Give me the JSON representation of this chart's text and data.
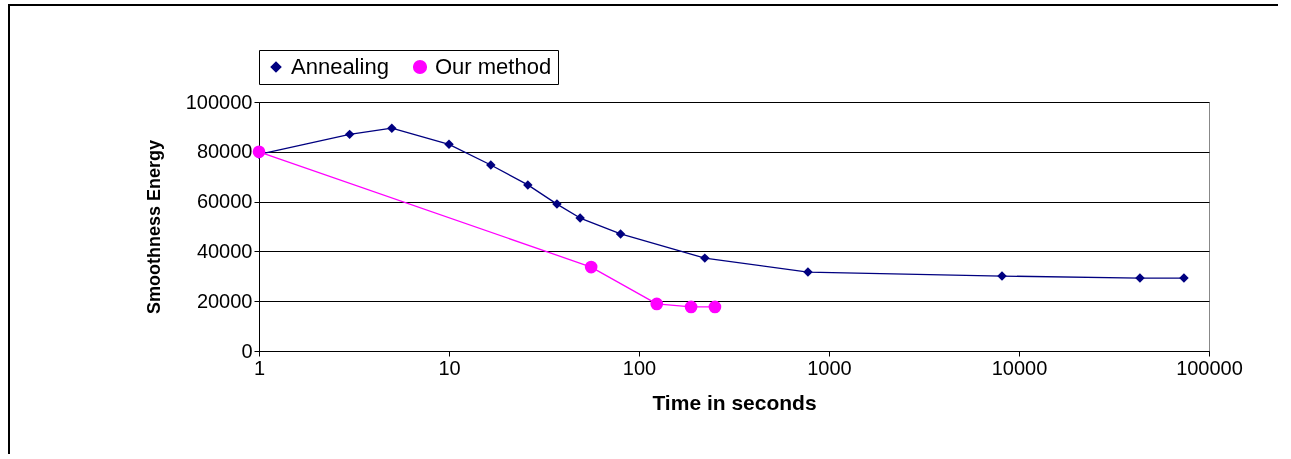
{
  "chart_data": {
    "type": "line",
    "xlabel": "Time in seconds",
    "ylabel": "Smoothness Energy",
    "log": "x",
    "xlim": [
      1,
      100000
    ],
    "xticks": [
      1,
      10,
      100,
      1000,
      10000,
      100000
    ],
    "ylim": [
      0,
      100000
    ],
    "yticks": [
      0,
      20000,
      40000,
      60000,
      80000,
      100000
    ],
    "grid": "y",
    "legend": "top",
    "series": [
      {
        "name": "Annealing",
        "color": "#000080",
        "marker": "diamond",
        "x": [
          1,
          3,
          5,
          10,
          16.6,
          26,
          37,
          49,
          80,
          222,
          775,
          8140,
          43300,
          73800
        ],
        "values": [
          79000,
          87000,
          89500,
          83000,
          74700,
          66700,
          59000,
          53400,
          47000,
          37300,
          31700,
          30100,
          29300,
          29300
        ]
      },
      {
        "name": "Our method",
        "color": "#ff00ff",
        "marker": "circle",
        "x": [
          1,
          56,
          124,
          188,
          251
        ],
        "values": [
          80000,
          33700,
          18900,
          17700,
          17700
        ]
      }
    ]
  }
}
